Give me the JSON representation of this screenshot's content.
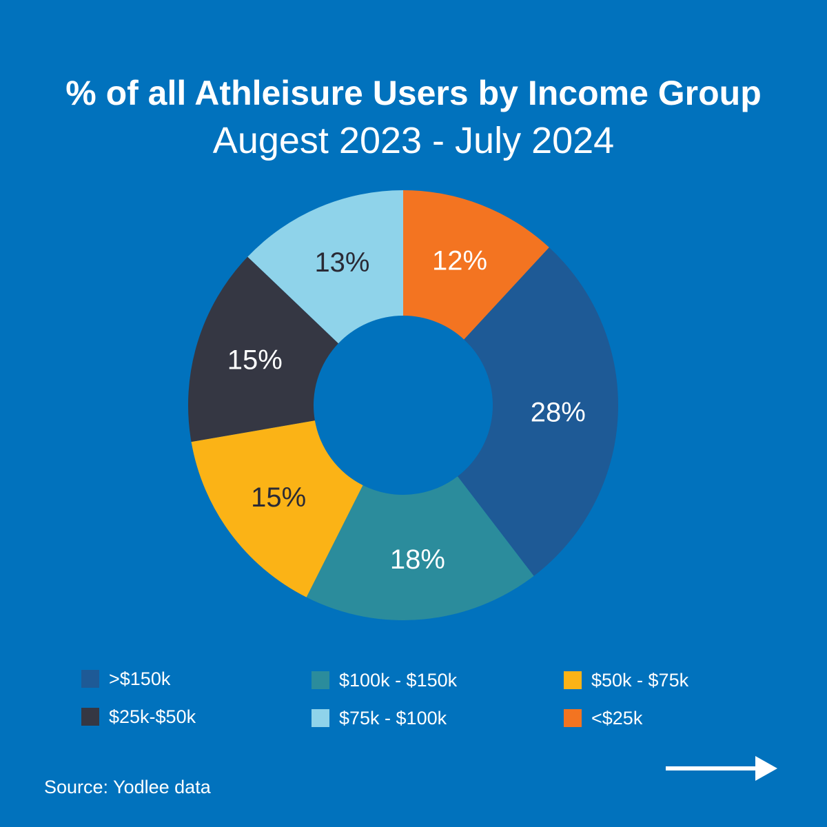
{
  "title": "% of all Athleisure Users by Income Group",
  "subtitle": "Augest 2023 - July 2024",
  "source": "Source: Yodlee data",
  "colors": {
    "background": "#0172bd"
  },
  "navigation": {
    "next_icon": "arrow-right-icon"
  },
  "chart_data": {
    "type": "pie",
    "donut": true,
    "title": "% of all Athleisure Users by Income Group",
    "subtitle": "Augest 2023 - July 2024",
    "legend_placement": "bottom",
    "slices": [
      {
        "label": "<$25k",
        "value": 12,
        "display": "12%",
        "color": "#f37421",
        "text_color": "#ffffff"
      },
      {
        "label": ">$150k",
        "value": 28,
        "display": "28%",
        "color": "#1e5a96",
        "text_color": "#ffffff"
      },
      {
        "label": "$100k - $150k",
        "value": 18,
        "display": "18%",
        "color": "#2b8c9c",
        "text_color": "#ffffff"
      },
      {
        "label": "$50k - $75k",
        "value": 15,
        "display": "15%",
        "color": "#fbb316",
        "text_color": "#2a2a35"
      },
      {
        "label": "$25k-$50k",
        "value": 15,
        "display": "15%",
        "color": "#353743",
        "text_color": "#ffffff"
      },
      {
        "label": "$75k - $100k",
        "value": 13,
        "display": "13%",
        "color": "#8fd3ea",
        "text_color": "#2a2a35"
      }
    ],
    "legend": [
      {
        "label": ">$150k",
        "color": "#1e5a96"
      },
      {
        "label": "$100k - $150k",
        "color": "#2b8c9c"
      },
      {
        "label": "$50k - $75k",
        "color": "#fbb316"
      },
      {
        "label": "$25k-$50k",
        "color": "#353743"
      },
      {
        "label": "$75k - $100k",
        "color": "#8fd3ea"
      },
      {
        "label": "<$25k",
        "color": "#f37421"
      }
    ]
  }
}
